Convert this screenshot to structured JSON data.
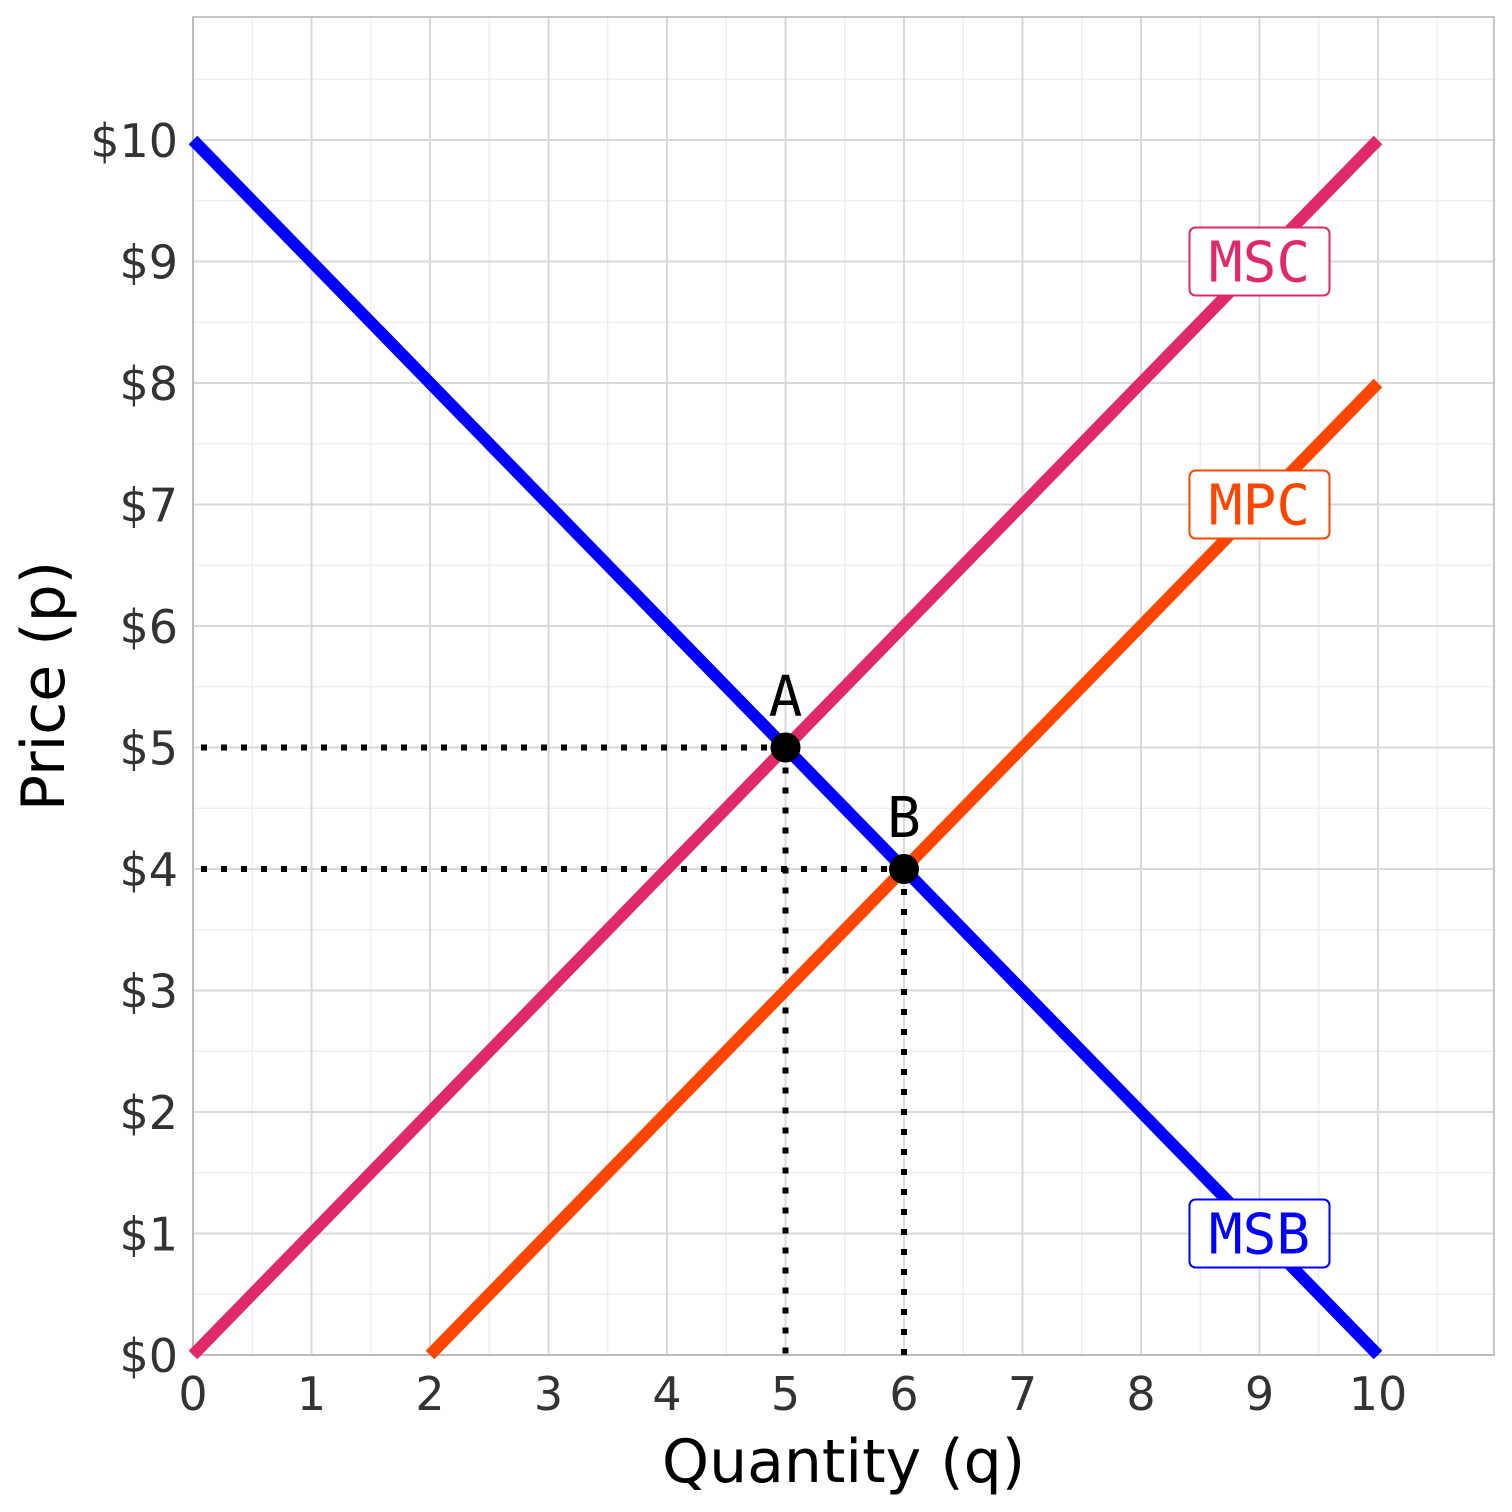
{
  "chart_data": {
    "type": "line",
    "xlabel": "Quantity (q)",
    "ylabel": "Price (p)",
    "xlim": [
      0,
      11
    ],
    "ylim": [
      0,
      11
    ],
    "x_ticks": [
      0,
      1,
      2,
      3,
      4,
      5,
      6,
      7,
      8,
      9,
      10
    ],
    "x_tick_labels": [
      "0",
      "1",
      "2",
      "3",
      "4",
      "5",
      "6",
      "7",
      "8",
      "9",
      "10"
    ],
    "y_ticks": [
      0,
      1,
      2,
      3,
      4,
      5,
      6,
      7,
      8,
      9,
      10
    ],
    "y_tick_labels": [
      "$0",
      "$1",
      "$2",
      "$3",
      "$4",
      "$5",
      "$6",
      "$7",
      "$8",
      "$9",
      "$10"
    ],
    "grid": true,
    "series": [
      {
        "name": "MSB",
        "color": "#0000ff",
        "points": [
          [
            0,
            10
          ],
          [
            10,
            0
          ]
        ],
        "label_at": [
          9,
          1
        ]
      },
      {
        "name": "MSC",
        "color": "#e0296b",
        "points": [
          [
            0,
            0
          ],
          [
            10,
            10
          ]
        ],
        "label_at": [
          9,
          9
        ]
      },
      {
        "name": "MPC",
        "color": "#ff4500",
        "points": [
          [
            2,
            0
          ],
          [
            10,
            8
          ]
        ],
        "label_at": [
          9,
          7
        ]
      }
    ],
    "points": [
      {
        "label": "A",
        "x": 5,
        "y": 5
      },
      {
        "label": "B",
        "x": 6,
        "y": 4
      }
    ]
  }
}
